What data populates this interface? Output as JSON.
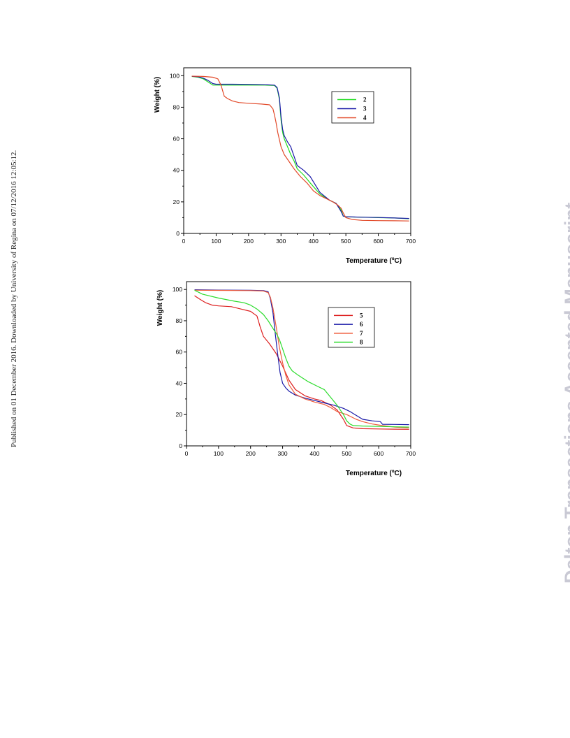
{
  "page": {
    "side_note": "Published on 01 December 2016. Downloaded by University of Regina on 07/12/2016 12:05:12.",
    "watermark": "Dalton Transactions Accepted Manuscript"
  },
  "chart_data": [
    {
      "type": "line",
      "xlabel": "Temperature (ºC)",
      "ylabel": "Weight (%)",
      "xlim": [
        0,
        700
      ],
      "ylim": [
        0,
        105
      ],
      "xticks": [
        0,
        100,
        200,
        300,
        400,
        500,
        600,
        700
      ],
      "yticks": [
        0,
        20,
        40,
        60,
        80,
        100
      ],
      "grid": false,
      "legend_position": "top-right",
      "series": [
        {
          "name": "2",
          "color": "#22dd22",
          "x": [
            25,
            45,
            60,
            75,
            90,
            100,
            150,
            200,
            250,
            280,
            288,
            295,
            300,
            305,
            310,
            320,
            330,
            340,
            350,
            370,
            390,
            420,
            450,
            470,
            485,
            492,
            500,
            550,
            600,
            650,
            695
          ],
          "y": [
            99.5,
            99,
            98,
            96,
            94,
            94,
            94,
            94,
            94,
            93.8,
            92,
            85,
            72,
            64,
            60,
            55,
            50,
            46,
            41,
            37,
            32,
            25,
            21,
            19,
            15,
            11,
            10.5,
            10.3,
            10,
            9.8,
            9.3
          ]
        },
        {
          "name": "3",
          "color": "#1a1aa8",
          "x": [
            25,
            45,
            60,
            75,
            90,
            100,
            150,
            200,
            250,
            280,
            288,
            295,
            300,
            305,
            310,
            320,
            330,
            340,
            350,
            370,
            390,
            420,
            450,
            470,
            485,
            492,
            500,
            550,
            600,
            650,
            695
          ],
          "y": [
            99.6,
            99.3,
            98.5,
            97,
            95,
            94.6,
            94.6,
            94.5,
            94.3,
            94,
            92.5,
            86,
            74,
            66,
            62,
            58,
            55,
            49,
            43,
            40,
            36,
            26,
            21,
            19,
            14,
            11,
            10.6,
            10.3,
            10.1,
            9.8,
            9.5
          ]
        },
        {
          "name": "4",
          "color": "#e24a2a",
          "x": [
            25,
            60,
            90,
            105,
            115,
            125,
            135,
            150,
            170,
            200,
            240,
            265,
            275,
            280,
            285,
            290,
            300,
            310,
            320,
            340,
            360,
            380,
            400,
            420,
            440,
            460,
            475,
            485,
            492,
            500,
            520,
            550,
            600,
            650,
            695
          ],
          "y": [
            99.7,
            99.5,
            99,
            98,
            94,
            87,
            85.5,
            84,
            83,
            82.5,
            82,
            81.5,
            79,
            75,
            70,
            64,
            55,
            50,
            47,
            41,
            36,
            32,
            27,
            24,
            22,
            20,
            18,
            16,
            13,
            10,
            8.8,
            8.3,
            8.1,
            8,
            7.9
          ]
        }
      ]
    },
    {
      "type": "line",
      "xlabel": "Temperature (ºC)",
      "ylabel": "Weight (%)",
      "xlim": [
        0,
        700
      ],
      "ylim": [
        0,
        105
      ],
      "xticks": [
        0,
        100,
        200,
        300,
        400,
        500,
        600,
        700
      ],
      "yticks": [
        0,
        20,
        40,
        60,
        80,
        100
      ],
      "grid": false,
      "legend_position": "top-right",
      "series": [
        {
          "name": "5",
          "color": "#dd1f1f",
          "x": [
            25,
            40,
            60,
            80,
            100,
            140,
            170,
            200,
            220,
            230,
            240,
            260,
            280,
            300,
            320,
            340,
            370,
            400,
            420,
            450,
            470,
            490,
            500,
            520,
            550,
            600,
            650,
            695
          ],
          "y": [
            96,
            94,
            91.5,
            90,
            89.5,
            89,
            87.5,
            86,
            83,
            76,
            70,
            65,
            59,
            51,
            42,
            36,
            32,
            30,
            29,
            26,
            23,
            17,
            13,
            11.5,
            11,
            10.8,
            10.7,
            10.6
          ]
        },
        {
          "name": "6",
          "color": "#1a1aa8",
          "x": [
            25,
            100,
            200,
            240,
            255,
            262,
            270,
            278,
            285,
            292,
            300,
            310,
            320,
            340,
            370,
            400,
            430,
            460,
            490,
            510,
            530,
            550,
            580,
            605,
            612,
            650,
            695
          ],
          "y": [
            99.8,
            99.6,
            99.5,
            99.3,
            98.5,
            94,
            85,
            70,
            58,
            47,
            40,
            37,
            35,
            32.5,
            30.5,
            29,
            27.5,
            26,
            24,
            22,
            19.5,
            17,
            16,
            15.5,
            13.8,
            13.7,
            13.6
          ]
        },
        {
          "name": "7",
          "color": "#ef5c3c",
          "x": [
            25,
            100,
            200,
            240,
            255,
            262,
            270,
            280,
            290,
            300,
            310,
            320,
            340,
            370,
            400,
            430,
            450,
            470,
            500,
            530,
            550,
            580,
            610,
            650,
            695
          ],
          "y": [
            99.5,
            99.4,
            99.3,
            99,
            98,
            95,
            88,
            76,
            63,
            53,
            45,
            39,
            33,
            30,
            28,
            26.5,
            24.5,
            22,
            20,
            17,
            15.5,
            14,
            13,
            12,
            11.5
          ]
        },
        {
          "name": "8",
          "color": "#2ddc2d",
          "x": [
            25,
            50,
            100,
            150,
            180,
            200,
            220,
            240,
            255,
            270,
            280,
            290,
            300,
            310,
            320,
            330,
            350,
            380,
            410,
            430,
            450,
            470,
            490,
            500,
            510,
            520,
            550,
            600,
            650,
            695
          ],
          "y": [
            99.5,
            97,
            94.5,
            92.5,
            91.5,
            90,
            87.5,
            84,
            80,
            75,
            72,
            68,
            62,
            56,
            51,
            48,
            45,
            41,
            38,
            36,
            31,
            26,
            20,
            16,
            14,
            13,
            12.7,
            12.4,
            12.2,
            12
          ]
        }
      ]
    }
  ]
}
